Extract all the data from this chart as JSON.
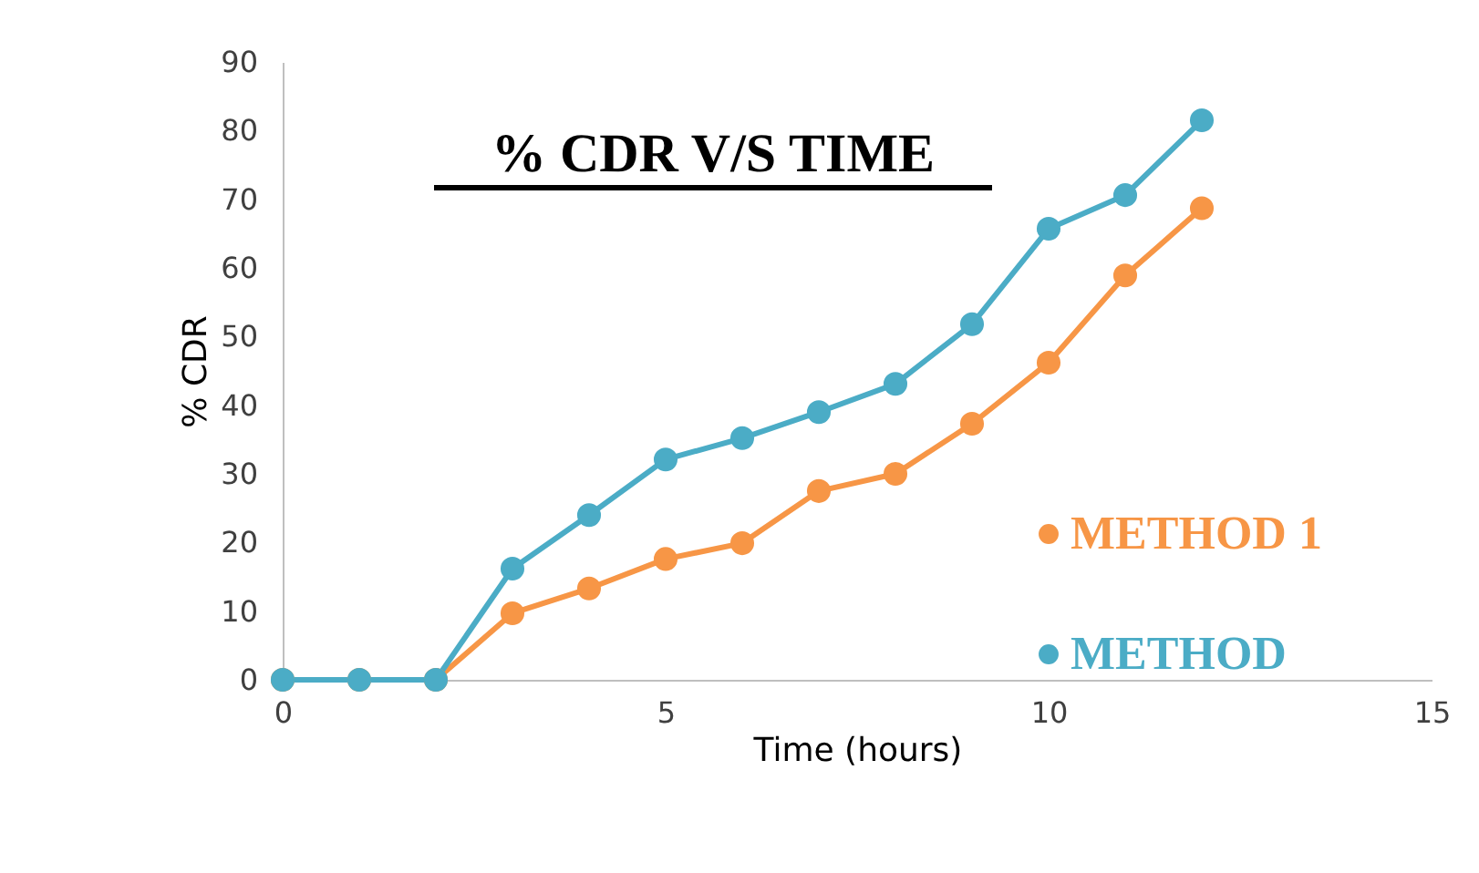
{
  "chart_data": {
    "type": "line",
    "title": "% CDR V/S TIME",
    "xlabel": "Time (hours)",
    "ylabel": "% CDR",
    "x": [
      0,
      1,
      2,
      3,
      4,
      5,
      6,
      7,
      8,
      9,
      10,
      11,
      12
    ],
    "series": [
      {
        "name": "METHOD 1",
        "color": "#f79646",
        "values": [
          0,
          0,
          0,
          9.7,
          13.3,
          17.6,
          19.9,
          27.5,
          30.0,
          37.3,
          46.2,
          58.9,
          68.7
        ]
      },
      {
        "name": "METHOD",
        "color": "#4bacc6",
        "values": [
          0,
          0,
          0,
          16.2,
          24.0,
          32.1,
          35.2,
          39.0,
          43.1,
          51.8,
          65.7,
          70.6,
          81.5
        ]
      }
    ],
    "xlim": [
      0,
      15
    ],
    "xticks": [
      0,
      5,
      10,
      15
    ],
    "ylim": [
      0,
      90
    ],
    "yticks": [
      0,
      10,
      20,
      30,
      40,
      50,
      60,
      70,
      80,
      90
    ],
    "grid": false,
    "legend": "bottom right",
    "marker": "circle",
    "line_style": "solid"
  }
}
